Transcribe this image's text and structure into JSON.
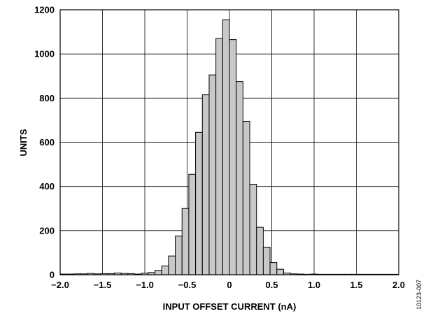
{
  "chart_data": {
    "type": "bar",
    "title": "",
    "xlabel": "INPUT OFFSET CURRENT (nA)",
    "ylabel": "UNITS",
    "xlim": [
      -2.0,
      2.0
    ],
    "ylim": [
      0,
      1200
    ],
    "xticks": [
      "−2.0",
      "−1.5",
      "−1.0",
      "−0.5",
      "0",
      "0.5",
      "1.0",
      "1.5",
      "2.0"
    ],
    "xtick_values": [
      -2.0,
      -1.5,
      -1.0,
      -0.5,
      0,
      0.5,
      1.0,
      1.5,
      2.0
    ],
    "yticks": [
      "0",
      "200",
      "400",
      "600",
      "800",
      "1000",
      "1200"
    ],
    "ytick_values": [
      0,
      200,
      400,
      600,
      800,
      1000,
      1200
    ],
    "grid": true,
    "bin_width": 0.08,
    "bar_color": "#c8c8c8",
    "bar_edge_color": "#000000",
    "x": [
      -1.96,
      -1.88,
      -1.8,
      -1.72,
      -1.64,
      -1.56,
      -1.48,
      -1.4,
      -1.32,
      -1.24,
      -1.16,
      -1.08,
      -1.0,
      -0.92,
      -0.84,
      -0.76,
      -0.68,
      -0.6,
      -0.52,
      -0.44,
      -0.36,
      -0.28,
      -0.2,
      -0.12,
      -0.04,
      0.04,
      0.12,
      0.2,
      0.28,
      0.36,
      0.44,
      0.52,
      0.6,
      0.68,
      0.76,
      0.84,
      0.92,
      1.0,
      1.08,
      1.16,
      1.24,
      1.32,
      1.4,
      1.48,
      1.56,
      1.64,
      1.72,
      1.8,
      1.88,
      1.96
    ],
    "values": [
      3,
      3,
      4,
      4,
      6,
      4,
      5,
      5,
      8,
      6,
      5,
      3,
      7,
      10,
      20,
      40,
      85,
      175,
      300,
      455,
      645,
      815,
      905,
      1070,
      1155,
      1065,
      875,
      695,
      410,
      215,
      125,
      55,
      25,
      8,
      4,
      3,
      2,
      3,
      2,
      2,
      2,
      2,
      2,
      2,
      2,
      2,
      2,
      2,
      2,
      2
    ]
  },
  "figure_id": "10123-007"
}
